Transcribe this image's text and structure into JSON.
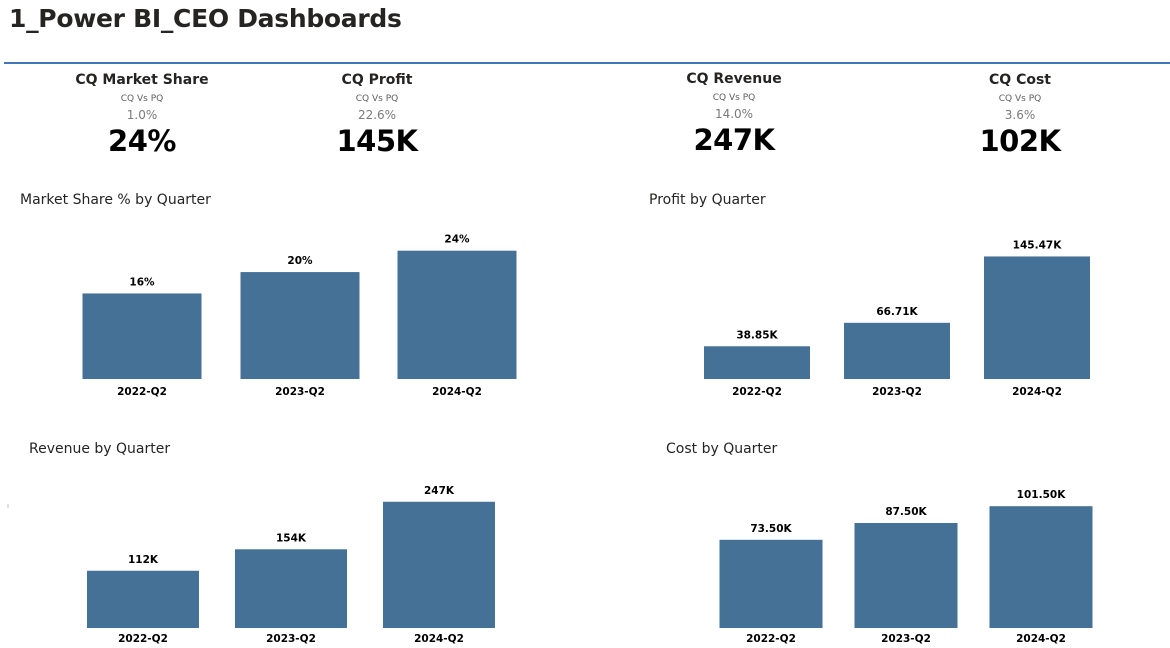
{
  "page": {
    "title": "1_Power BI_CEO Dashboards"
  },
  "kpis": [
    {
      "title": "CQ Market Share",
      "subtitle": "CQ Vs PQ",
      "change": "1.0%",
      "value": "24%"
    },
    {
      "title": "CQ Profit",
      "subtitle": "CQ Vs PQ",
      "change": "22.6%",
      "value": "145K"
    },
    {
      "title": "CQ Revenue",
      "subtitle": "CQ Vs PQ",
      "change": "14.0%",
      "value": "247K"
    },
    {
      "title": "CQ Cost",
      "subtitle": "CQ Vs PQ",
      "change": "3.6%",
      "value": "102K"
    }
  ],
  "colors": {
    "bar": "#457196",
    "accent_rule": "#3f77b7"
  },
  "chart_data": [
    {
      "type": "bar",
      "title": "Market Share % by Quarter",
      "categories": [
        "2022-Q2",
        "2023-Q2",
        "2024-Q2"
      ],
      "values": [
        16,
        20,
        24
      ],
      "data_labels": [
        "16%",
        "20%",
        "24%"
      ],
      "ylim": [
        0,
        26
      ],
      "grid": false
    },
    {
      "type": "bar",
      "title": "Profit by Quarter",
      "categories": [
        "2022-Q2",
        "2023-Q2",
        "2024-Q2"
      ],
      "values": [
        38.85,
        66.71,
        145.47
      ],
      "data_labels": [
        "38.85K",
        "66.71K",
        "145.47K"
      ],
      "ylim": [
        0,
        165
      ],
      "grid": false
    },
    {
      "type": "bar",
      "title": "Revenue by Quarter",
      "categories": [
        "2022-Q2",
        "2023-Q2",
        "2024-Q2"
      ],
      "values": [
        112,
        154,
        247
      ],
      "data_labels": [
        "112K",
        "154K",
        "247K"
      ],
      "ylim": [
        0,
        270
      ],
      "grid": false
    },
    {
      "type": "bar",
      "title": "Cost by Quarter",
      "categories": [
        "2022-Q2",
        "2023-Q2",
        "2024-Q2"
      ],
      "values": [
        73.5,
        87.5,
        101.5
      ],
      "data_labels": [
        "73.50K",
        "87.50K",
        "101.50K"
      ],
      "ylim": [
        0,
        115
      ],
      "grid": false
    }
  ]
}
